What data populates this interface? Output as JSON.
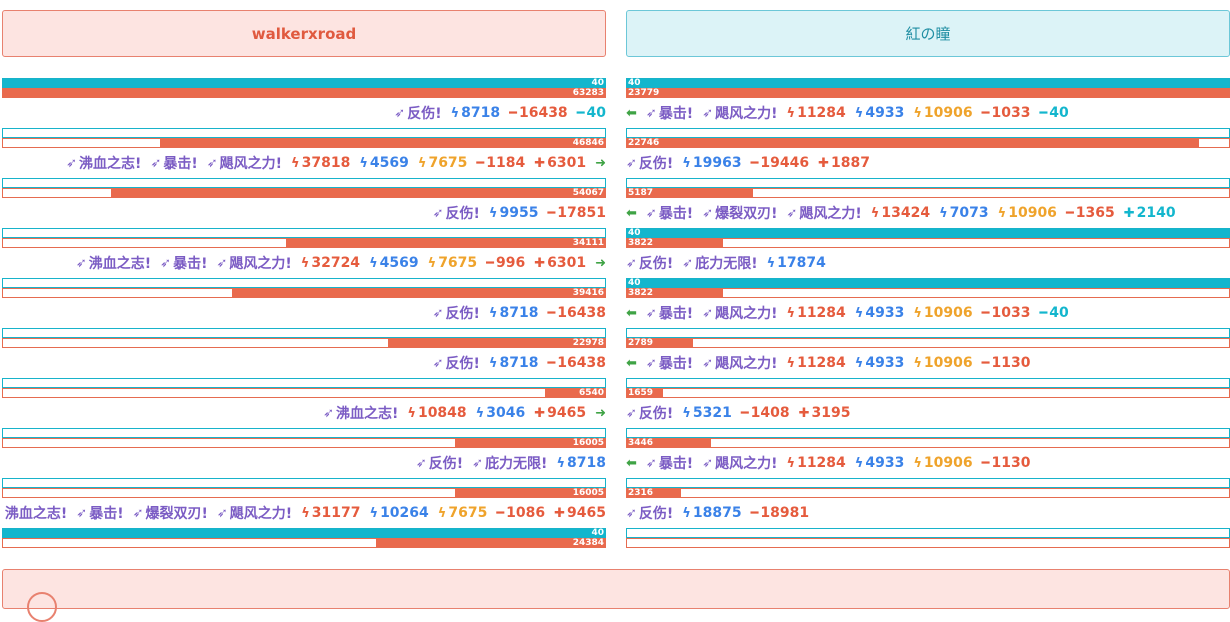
{
  "players": {
    "left": {
      "name": "walkerxroad"
    },
    "right": {
      "name": "紅の瞳"
    }
  },
  "icons": {
    "skill": "skill-arrow-icon",
    "damage": "lightning-icon",
    "minus": "minus-icon",
    "plus": "plus-icon",
    "turn_right": "arrow-right-icon",
    "turn_left": "arrow-left-icon",
    "alert": "alert-circle-icon"
  },
  "colors": {
    "left_accent": "#e96a4d",
    "right_accent": "#13b6cd",
    "skill": "#7b5cc4",
    "hit": "#3a82e8",
    "crit": "#efa32b",
    "heal_arrow": "#3fa345"
  },
  "left_rounds": [
    {
      "top_value": "40",
      "top_fill": 1.0,
      "bot_value": "63283",
      "bot_fill": 1.0,
      "line": [
        {
          "k": "skill",
          "t": "反伤!"
        },
        {
          "k": "hit",
          "t": "8718"
        },
        {
          "k": "loss",
          "t": "16438"
        },
        {
          "k": "mana",
          "t": "40"
        }
      ]
    },
    {
      "top_value": "",
      "top_fill": 0.0,
      "bot_value": "46846",
      "bot_fill": 0.74,
      "line": [
        {
          "k": "skill",
          "t": "沸血之志!"
        },
        {
          "k": "skill",
          "t": "暴击!"
        },
        {
          "k": "skill",
          "t": "飓风之力!"
        },
        {
          "k": "dmg",
          "t": "37818"
        },
        {
          "k": "hit",
          "t": "4569"
        },
        {
          "k": "crit",
          "t": "7675"
        },
        {
          "k": "loss",
          "t": "1184"
        },
        {
          "k": "heal",
          "t": "6301"
        },
        {
          "k": "arrow-right",
          "t": ""
        }
      ]
    },
    {
      "top_value": "",
      "top_fill": 0.0,
      "bot_value": "54067",
      "bot_fill": 0.82,
      "line": [
        {
          "k": "skill",
          "t": "反伤!"
        },
        {
          "k": "hit",
          "t": "9955"
        },
        {
          "k": "loss",
          "t": "17851"
        }
      ]
    },
    {
      "top_value": "",
      "top_fill": 0.0,
      "bot_value": "34111",
      "bot_fill": 0.53,
      "line": [
        {
          "k": "skill",
          "t": "沸血之志!"
        },
        {
          "k": "skill",
          "t": "暴击!"
        },
        {
          "k": "skill",
          "t": "飓风之力!"
        },
        {
          "k": "dmg",
          "t": "32724"
        },
        {
          "k": "hit",
          "t": "4569"
        },
        {
          "k": "crit",
          "t": "7675"
        },
        {
          "k": "loss",
          "t": "996"
        },
        {
          "k": "heal",
          "t": "6301"
        },
        {
          "k": "arrow-right",
          "t": ""
        }
      ]
    },
    {
      "top_value": "",
      "top_fill": 0.0,
      "bot_value": "39416",
      "bot_fill": 0.62,
      "line": [
        {
          "k": "skill",
          "t": "反伤!"
        },
        {
          "k": "hit",
          "t": "8718"
        },
        {
          "k": "loss",
          "t": "16438"
        }
      ]
    },
    {
      "top_value": "",
      "top_fill": 0.0,
      "bot_value": "22978",
      "bot_fill": 0.36,
      "line": [
        {
          "k": "skill",
          "t": "反伤!"
        },
        {
          "k": "hit",
          "t": "8718"
        },
        {
          "k": "loss",
          "t": "16438"
        }
      ]
    },
    {
      "top_value": "",
      "top_fill": 0.0,
      "bot_value": "6540",
      "bot_fill": 0.1,
      "line": [
        {
          "k": "skill",
          "t": "沸血之志!"
        },
        {
          "k": "dmg",
          "t": "10848"
        },
        {
          "k": "hit",
          "t": "3046"
        },
        {
          "k": "heal",
          "t": "9465"
        },
        {
          "k": "arrow-right",
          "t": ""
        }
      ]
    },
    {
      "top_value": "",
      "top_fill": 0.0,
      "bot_value": "16005",
      "bot_fill": 0.25,
      "line": [
        {
          "k": "skill",
          "t": "反伤!"
        },
        {
          "k": "skill",
          "t": "庇力无限!"
        },
        {
          "k": "hit",
          "t": "8718"
        }
      ]
    },
    {
      "top_value": "",
      "top_fill": 0.0,
      "bot_value": "16005",
      "bot_fill": 0.25,
      "line": [
        {
          "k": "skill",
          "t": "沸血之志!"
        },
        {
          "k": "skill",
          "t": "暴击!"
        },
        {
          "k": "skill",
          "t": "爆裂双刃!"
        },
        {
          "k": "skill",
          "t": "飓风之力!"
        },
        {
          "k": "dmg",
          "t": "31177"
        },
        {
          "k": "hit",
          "t": "10264"
        },
        {
          "k": "crit",
          "t": "7675"
        },
        {
          "k": "loss",
          "t": "1086"
        },
        {
          "k": "heal",
          "t": "9465"
        }
      ]
    },
    {
      "top_value": "40",
      "top_fill": 1.0,
      "bot_value": "24384",
      "bot_fill": 0.38,
      "line": []
    }
  ],
  "right_rounds": [
    {
      "top_value": "40",
      "top_fill": 1.0,
      "bot_value": "23779",
      "bot_fill": 1.0,
      "line": [
        {
          "k": "arrow-left",
          "t": ""
        },
        {
          "k": "skill",
          "t": "暴击!"
        },
        {
          "k": "skill",
          "t": "飓风之力!"
        },
        {
          "k": "dmg",
          "t": "11284"
        },
        {
          "k": "hit",
          "t": "4933"
        },
        {
          "k": "crit",
          "t": "10906"
        },
        {
          "k": "loss",
          "t": "1033"
        },
        {
          "k": "mana",
          "t": "40"
        }
      ]
    },
    {
      "top_value": "",
      "top_fill": 0.0,
      "bot_value": "22746",
      "bot_fill": 0.95,
      "line": [
        {
          "k": "skill",
          "t": "反伤!"
        },
        {
          "k": "hit",
          "t": "19963"
        },
        {
          "k": "loss",
          "t": "19446"
        },
        {
          "k": "heal",
          "t": "1887"
        }
      ]
    },
    {
      "top_value": "",
      "top_fill": 0.0,
      "bot_value": "5187",
      "bot_fill": 0.21,
      "line": [
        {
          "k": "arrow-left",
          "t": ""
        },
        {
          "k": "skill",
          "t": "暴击!"
        },
        {
          "k": "skill",
          "t": "爆裂双刃!"
        },
        {
          "k": "skill",
          "t": "飓风之力!"
        },
        {
          "k": "dmg",
          "t": "13424"
        },
        {
          "k": "hit",
          "t": "7073"
        },
        {
          "k": "crit",
          "t": "10906"
        },
        {
          "k": "loss",
          "t": "1365"
        },
        {
          "k": "mana-plus",
          "t": "2140"
        }
      ]
    },
    {
      "top_value": "40",
      "top_fill": 1.0,
      "bot_value": "3822",
      "bot_fill": 0.16,
      "line": [
        {
          "k": "skill",
          "t": "反伤!"
        },
        {
          "k": "skill",
          "t": "庇力无限!"
        },
        {
          "k": "hit",
          "t": "17874"
        }
      ]
    },
    {
      "top_value": "40",
      "top_fill": 1.0,
      "bot_value": "3822",
      "bot_fill": 0.16,
      "line": [
        {
          "k": "arrow-left",
          "t": ""
        },
        {
          "k": "skill",
          "t": "暴击!"
        },
        {
          "k": "skill",
          "t": "飓风之力!"
        },
        {
          "k": "dmg",
          "t": "11284"
        },
        {
          "k": "hit",
          "t": "4933"
        },
        {
          "k": "crit",
          "t": "10906"
        },
        {
          "k": "loss",
          "t": "1033"
        },
        {
          "k": "mana",
          "t": "40"
        }
      ]
    },
    {
      "top_value": "",
      "top_fill": 0.0,
      "bot_value": "2789",
      "bot_fill": 0.11,
      "line": [
        {
          "k": "arrow-left",
          "t": ""
        },
        {
          "k": "skill",
          "t": "暴击!"
        },
        {
          "k": "skill",
          "t": "飓风之力!"
        },
        {
          "k": "dmg",
          "t": "11284"
        },
        {
          "k": "hit",
          "t": "4933"
        },
        {
          "k": "crit",
          "t": "10906"
        },
        {
          "k": "loss",
          "t": "1130"
        }
      ]
    },
    {
      "top_value": "",
      "top_fill": 0.0,
      "bot_value": "1659",
      "bot_fill": 0.06,
      "line": [
        {
          "k": "skill",
          "t": "反伤!"
        },
        {
          "k": "hit",
          "t": "5321"
        },
        {
          "k": "loss",
          "t": "1408"
        },
        {
          "k": "heal",
          "t": "3195"
        }
      ]
    },
    {
      "top_value": "",
      "top_fill": 0.0,
      "bot_value": "3446",
      "bot_fill": 0.14,
      "line": [
        {
          "k": "arrow-left",
          "t": ""
        },
        {
          "k": "skill",
          "t": "暴击!"
        },
        {
          "k": "skill",
          "t": "飓风之力!"
        },
        {
          "k": "dmg",
          "t": "11284"
        },
        {
          "k": "hit",
          "t": "4933"
        },
        {
          "k": "crit",
          "t": "10906"
        },
        {
          "k": "loss",
          "t": "1130"
        }
      ]
    },
    {
      "top_value": "",
      "top_fill": 0.0,
      "bot_value": "2316",
      "bot_fill": 0.09,
      "line": [
        {
          "k": "skill",
          "t": "反伤!"
        },
        {
          "k": "hit",
          "t": "18875"
        },
        {
          "k": "loss",
          "t": "18981"
        }
      ]
    },
    {
      "top_value": "",
      "top_fill": 0.0,
      "bot_value": "",
      "bot_fill": 0.0,
      "line": []
    }
  ]
}
